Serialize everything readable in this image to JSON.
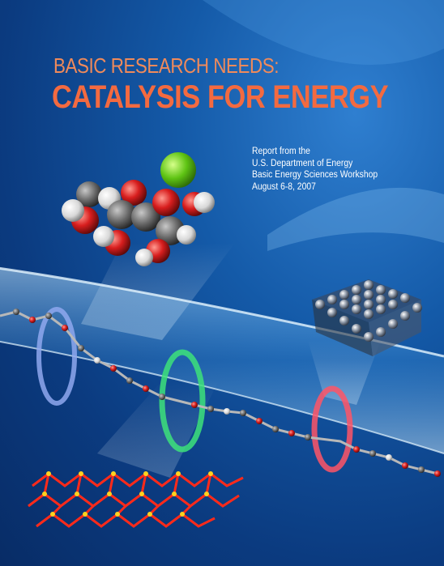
{
  "title": {
    "line1": "BASIC RESEARCH NEEDS:",
    "line2": "CATALYSIS FOR ENERGY"
  },
  "subtitle": {
    "line1": "Report from the",
    "line2": "U.S. Department of Energy",
    "line3": "Basic Energy Sciences Workshop",
    "line4": "August 6-8, 2007"
  },
  "colors": {
    "background": "#0b3b80",
    "title_line1": "#f08a5a",
    "title_line2": "#f36a40",
    "ring_blue": "#7a9be8",
    "ring_green": "#39d86a",
    "ring_red": "#ff4a5a"
  }
}
